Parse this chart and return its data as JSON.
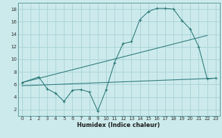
{
  "title": "",
  "xlabel": "Humidex (Indice chaleur)",
  "bg_color": "#cceaec",
  "grid_color": "#aad4d8",
  "line_color": "#2d7a7a",
  "xlim": [
    -0.5,
    23.5
  ],
  "ylim": [
    1,
    19
  ],
  "xticks": [
    0,
    1,
    2,
    3,
    4,
    5,
    6,
    7,
    8,
    9,
    10,
    11,
    12,
    13,
    14,
    15,
    16,
    17,
    18,
    19,
    20,
    21,
    22,
    23
  ],
  "yticks": [
    2,
    4,
    6,
    8,
    10,
    12,
    14,
    16,
    18
  ],
  "curve1_x": [
    0,
    2,
    3,
    4,
    5,
    6,
    7,
    8,
    9,
    10,
    11,
    12,
    13,
    14,
    15,
    16,
    17,
    18,
    19,
    20,
    21,
    22,
    23
  ],
  "curve1_y": [
    6.3,
    7.2,
    5.3,
    4.6,
    3.3,
    5.1,
    5.2,
    4.8,
    1.8,
    5.2,
    9.5,
    12.5,
    12.8,
    16.3,
    17.6,
    18.1,
    18.1,
    18.0,
    16.2,
    14.8,
    12.0,
    6.9,
    7.0
  ],
  "curve2_x": [
    0,
    19,
    22
  ],
  "curve2_y": [
    6.3,
    14.5,
    12.0
  ],
  "curve3_x": [
    0,
    23
  ],
  "curve3_y": [
    5.8,
    7.0
  ],
  "line1_x": [
    0,
    22
  ],
  "line1_y": [
    6.3,
    13.8
  ]
}
